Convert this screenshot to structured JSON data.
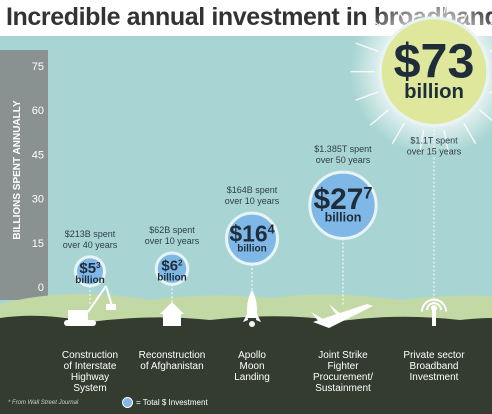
{
  "chart_data": {
    "type": "bubble",
    "title": "Incredible annual investment in broadband",
    "ylabel": "BILLIONS SPENT ANNUALLY",
    "yticks": [
      0,
      15,
      30,
      45,
      60,
      75
    ],
    "ylim": [
      0,
      85
    ],
    "colors": {
      "sky": "#a8d5d3",
      "axis": "#8a9191",
      "bubble": "#7fb8e6",
      "highlight": "#dfe79c",
      "ground": "#343c2f",
      "hills": "#c2d8a5",
      "label": "#ffffff",
      "spent": "#2f3e4b"
    },
    "items": [
      {
        "category": [
          "Construction",
          "of Interstate",
          "Highway",
          "System"
        ],
        "icon": "bulldozer-icon",
        "value": 5.3,
        "big": "$5",
        "small": "3",
        "unit": "billion",
        "spent": [
          "$213B spent",
          "over 40 years"
        ]
      },
      {
        "category": [
          "Reconstruction",
          "of Afghanistan"
        ],
        "icon": "house-icon",
        "value": 6.2,
        "big": "$6",
        "small": "2",
        "unit": "billion",
        "spent": [
          "$62B spent",
          "over 10 years"
        ]
      },
      {
        "category": [
          "Apollo",
          "Moon",
          "Landing"
        ],
        "icon": "rocket-icon",
        "value": 16.4,
        "big": "$16",
        "small": "4",
        "unit": "billion",
        "spent": [
          "$164B spent",
          "over 10 years"
        ]
      },
      {
        "category": [
          "Joint Strike",
          "Fighter",
          "Procurement/",
          "Sustainment"
        ],
        "icon": "jet-icon",
        "value": 27.7,
        "big": "$27",
        "small": "7",
        "unit": "billion",
        "spent": [
          "$1.385T spent",
          "over 50 years"
        ]
      },
      {
        "category": [
          "Private sector",
          "Broadband",
          "Investment"
        ],
        "icon": "antenna-icon",
        "value": 73,
        "big": "$73",
        "small": "",
        "unit": "billion",
        "spent": [
          "$1.1T spent",
          "over 15 years"
        ]
      }
    ],
    "footnote": "* From Wall Street Journal",
    "legend": "= Total $ Investment"
  }
}
